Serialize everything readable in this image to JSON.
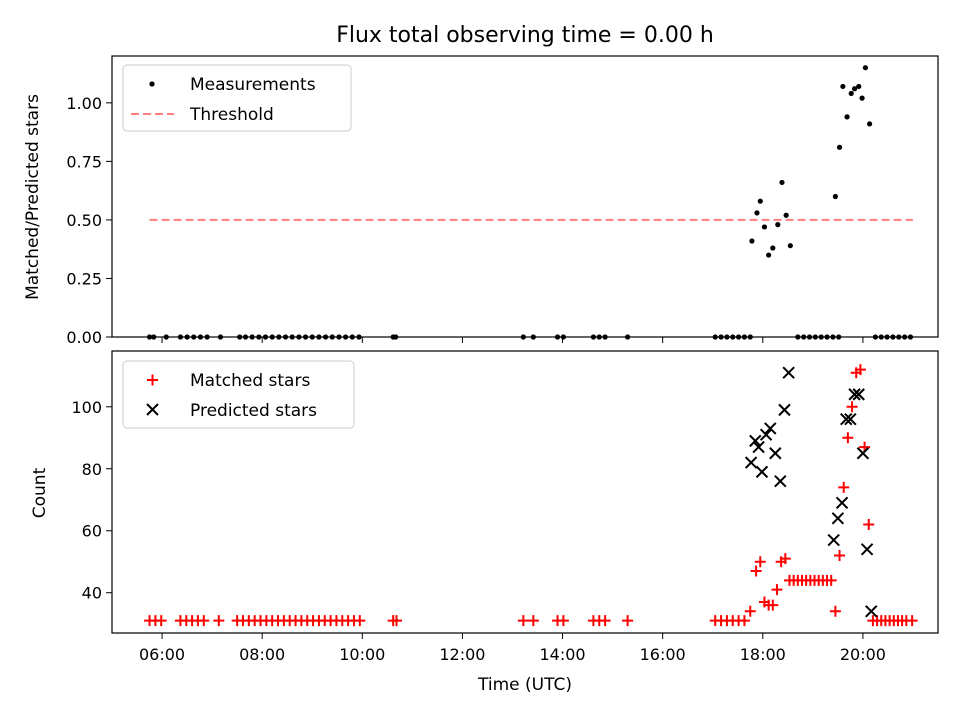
{
  "title": "Flux total observing time = 0.00 h",
  "colors": {
    "measurement": "#000000",
    "threshold": "#ff7f7f",
    "matched": "#ff0000",
    "predicted": "#000000"
  },
  "top": {
    "ylabel": "Matched/Predicted stars",
    "yticks": [
      "0.00",
      "0.25",
      "0.50",
      "0.75",
      "1.00"
    ],
    "legend": {
      "measurements": "Measurements",
      "threshold": "Threshold"
    }
  },
  "bottom": {
    "ylabel": "Count",
    "xlabel": "Time (UTC)",
    "yticks": [
      "40",
      "60",
      "80",
      "100"
    ],
    "xticks": [
      "06:00",
      "08:00",
      "10:00",
      "12:00",
      "14:00",
      "16:00",
      "18:00",
      "20:00"
    ],
    "legend": {
      "matched": "Matched stars",
      "predicted": "Predicted stars"
    }
  },
  "chart_data": [
    {
      "type": "scatter",
      "title": "Flux total observing time = 0.00 h",
      "xlabel": "",
      "ylabel": "Matched/Predicted stars",
      "xlim": [
        "05:00",
        "21:30"
      ],
      "ylim": [
        0,
        1.2
      ],
      "grid": false,
      "legend_position": "top-left",
      "series": [
        {
          "name": "Measurements",
          "marker": "dot",
          "points": [
            [
              "05:45",
              0
            ],
            [
              "05:50",
              0
            ],
            [
              "06:05",
              0
            ],
            [
              "06:22",
              0
            ],
            [
              "06:30",
              0
            ],
            [
              "06:38",
              0
            ],
            [
              "06:46",
              0
            ],
            [
              "06:54",
              0
            ],
            [
              "07:10",
              0
            ],
            [
              "07:33",
              0
            ],
            [
              "07:40",
              0
            ],
            [
              "07:48",
              0
            ],
            [
              "07:56",
              0
            ],
            [
              "08:04",
              0
            ],
            [
              "08:12",
              0
            ],
            [
              "08:20",
              0
            ],
            [
              "08:28",
              0
            ],
            [
              "08:36",
              0
            ],
            [
              "08:44",
              0
            ],
            [
              "08:52",
              0
            ],
            [
              "09:00",
              0
            ],
            [
              "09:08",
              0
            ],
            [
              "09:16",
              0
            ],
            [
              "09:24",
              0
            ],
            [
              "09:32",
              0
            ],
            [
              "09:40",
              0
            ],
            [
              "09:48",
              0
            ],
            [
              "09:56",
              0
            ],
            [
              "10:37",
              0
            ],
            [
              "10:40",
              0
            ],
            [
              "13:13",
              0
            ],
            [
              "13:25",
              0
            ],
            [
              "13:54",
              0
            ],
            [
              "14:01",
              0
            ],
            [
              "14:37",
              0
            ],
            [
              "14:44",
              0
            ],
            [
              "14:51",
              0
            ],
            [
              "15:18",
              0
            ],
            [
              "17:03",
              0
            ],
            [
              "17:10",
              0
            ],
            [
              "17:17",
              0
            ],
            [
              "17:24",
              0
            ],
            [
              "17:31",
              0
            ],
            [
              "17:38",
              0
            ],
            [
              "17:45",
              0
            ],
            [
              "17:47",
              0.41
            ],
            [
              "17:53",
              0.53
            ],
            [
              "17:57",
              0.58
            ],
            [
              "18:02",
              0.47
            ],
            [
              "18:07",
              0.35
            ],
            [
              "18:12",
              0.38
            ],
            [
              "18:18",
              0.48
            ],
            [
              "18:23",
              0.66
            ],
            [
              "18:28",
              0.52
            ],
            [
              "18:33",
              0.39
            ],
            [
              "18:42",
              0
            ],
            [
              "18:49",
              0
            ],
            [
              "18:56",
              0
            ],
            [
              "19:03",
              0
            ],
            [
              "19:10",
              0
            ],
            [
              "19:17",
              0
            ],
            [
              "19:24",
              0
            ],
            [
              "19:31",
              0
            ],
            [
              "19:27",
              0.6
            ],
            [
              "19:32",
              0.81
            ],
            [
              "19:36",
              1.07
            ],
            [
              "19:41",
              0.94
            ],
            [
              "19:46",
              1.04
            ],
            [
              "19:50",
              1.06
            ],
            [
              "19:55",
              1.07
            ],
            [
              "19:59",
              1.02
            ],
            [
              "20:03",
              1.15
            ],
            [
              "20:08",
              0.91
            ],
            [
              "20:15",
              0
            ],
            [
              "20:22",
              0
            ],
            [
              "20:29",
              0
            ],
            [
              "20:36",
              0
            ],
            [
              "20:43",
              0
            ],
            [
              "20:50",
              0
            ],
            [
              "20:57",
              0
            ]
          ]
        },
        {
          "name": "Threshold",
          "style": "dashed",
          "points": [
            [
              "05:45",
              0.5
            ],
            [
              "21:00",
              0.5
            ]
          ]
        }
      ]
    },
    {
      "type": "scatter",
      "xlabel": "Time (UTC)",
      "ylabel": "Count",
      "xlim": [
        "05:00",
        "21:30"
      ],
      "ylim": [
        27,
        118
      ],
      "grid": false,
      "legend_position": "top-left",
      "series": [
        {
          "name": "Matched stars",
          "marker": "plus",
          "points": [
            [
              "05:45",
              31
            ],
            [
              "05:52",
              31
            ],
            [
              "05:59",
              31
            ],
            [
              "06:22",
              31
            ],
            [
              "06:29",
              31
            ],
            [
              "06:36",
              31
            ],
            [
              "06:43",
              31
            ],
            [
              "06:50",
              31
            ],
            [
              "07:08",
              31
            ],
            [
              "07:30",
              31
            ],
            [
              "07:37",
              31
            ],
            [
              "07:44",
              31
            ],
            [
              "07:51",
              31
            ],
            [
              "07:58",
              31
            ],
            [
              "08:05",
              31
            ],
            [
              "08:12",
              31
            ],
            [
              "08:19",
              31
            ],
            [
              "08:26",
              31
            ],
            [
              "08:33",
              31
            ],
            [
              "08:40",
              31
            ],
            [
              "08:47",
              31
            ],
            [
              "08:54",
              31
            ],
            [
              "09:01",
              31
            ],
            [
              "09:08",
              31
            ],
            [
              "09:15",
              31
            ],
            [
              "09:22",
              31
            ],
            [
              "09:29",
              31
            ],
            [
              "09:36",
              31
            ],
            [
              "09:43",
              31
            ],
            [
              "09:50",
              31
            ],
            [
              "09:57",
              31
            ],
            [
              "10:37",
              31
            ],
            [
              "10:41",
              31
            ],
            [
              "13:13",
              31
            ],
            [
              "13:25",
              31
            ],
            [
              "13:54",
              31
            ],
            [
              "14:01",
              31
            ],
            [
              "14:37",
              31
            ],
            [
              "14:44",
              31
            ],
            [
              "14:51",
              31
            ],
            [
              "15:18",
              31
            ],
            [
              "17:03",
              31
            ],
            [
              "17:10",
              31
            ],
            [
              "17:17",
              31
            ],
            [
              "17:24",
              31
            ],
            [
              "17:31",
              31
            ],
            [
              "17:38",
              31
            ],
            [
              "17:45",
              34
            ],
            [
              "17:52",
              47
            ],
            [
              "17:57",
              50
            ],
            [
              "18:02",
              37
            ],
            [
              "18:07",
              36
            ],
            [
              "18:12",
              36
            ],
            [
              "18:17",
              41
            ],
            [
              "18:22",
              50
            ],
            [
              "18:27",
              51
            ],
            [
              "18:32",
              44
            ],
            [
              "18:37",
              44
            ],
            [
              "18:42",
              44
            ],
            [
              "18:47",
              44
            ],
            [
              "18:52",
              44
            ],
            [
              "18:57",
              44
            ],
            [
              "19:02",
              44
            ],
            [
              "19:07",
              44
            ],
            [
              "19:12",
              44
            ],
            [
              "19:17",
              44
            ],
            [
              "19:22",
              44
            ],
            [
              "19:27",
              34
            ],
            [
              "19:32",
              52
            ],
            [
              "19:37",
              74
            ],
            [
              "19:42",
              90
            ],
            [
              "19:47",
              100
            ],
            [
              "19:52",
              111
            ],
            [
              "19:57",
              112
            ],
            [
              "20:02",
              87
            ],
            [
              "20:07",
              62
            ],
            [
              "20:12",
              31
            ],
            [
              "20:17",
              31
            ],
            [
              "20:22",
              31
            ],
            [
              "20:27",
              31
            ],
            [
              "20:32",
              31
            ],
            [
              "20:37",
              31
            ],
            [
              "20:42",
              31
            ],
            [
              "20:47",
              31
            ],
            [
              "20:52",
              31
            ],
            [
              "20:59",
              31
            ]
          ]
        },
        {
          "name": "Predicted stars",
          "marker": "x",
          "points": [
            [
              "17:46",
              82
            ],
            [
              "17:51",
              89
            ],
            [
              "17:55",
              87
            ],
            [
              "17:59",
              79
            ],
            [
              "18:04",
              91
            ],
            [
              "18:09",
              93
            ],
            [
              "18:15",
              85
            ],
            [
              "18:21",
              76
            ],
            [
              "18:26",
              99
            ],
            [
              "18:31",
              111
            ],
            [
              "19:25",
              57
            ],
            [
              "19:30",
              64
            ],
            [
              "19:35",
              69
            ],
            [
              "19:40",
              96
            ],
            [
              "19:45",
              96
            ],
            [
              "19:50",
              104
            ],
            [
              "19:55",
              104
            ],
            [
              "20:00",
              85
            ],
            [
              "20:05",
              54
            ],
            [
              "20:10",
              34
            ]
          ]
        }
      ]
    }
  ]
}
